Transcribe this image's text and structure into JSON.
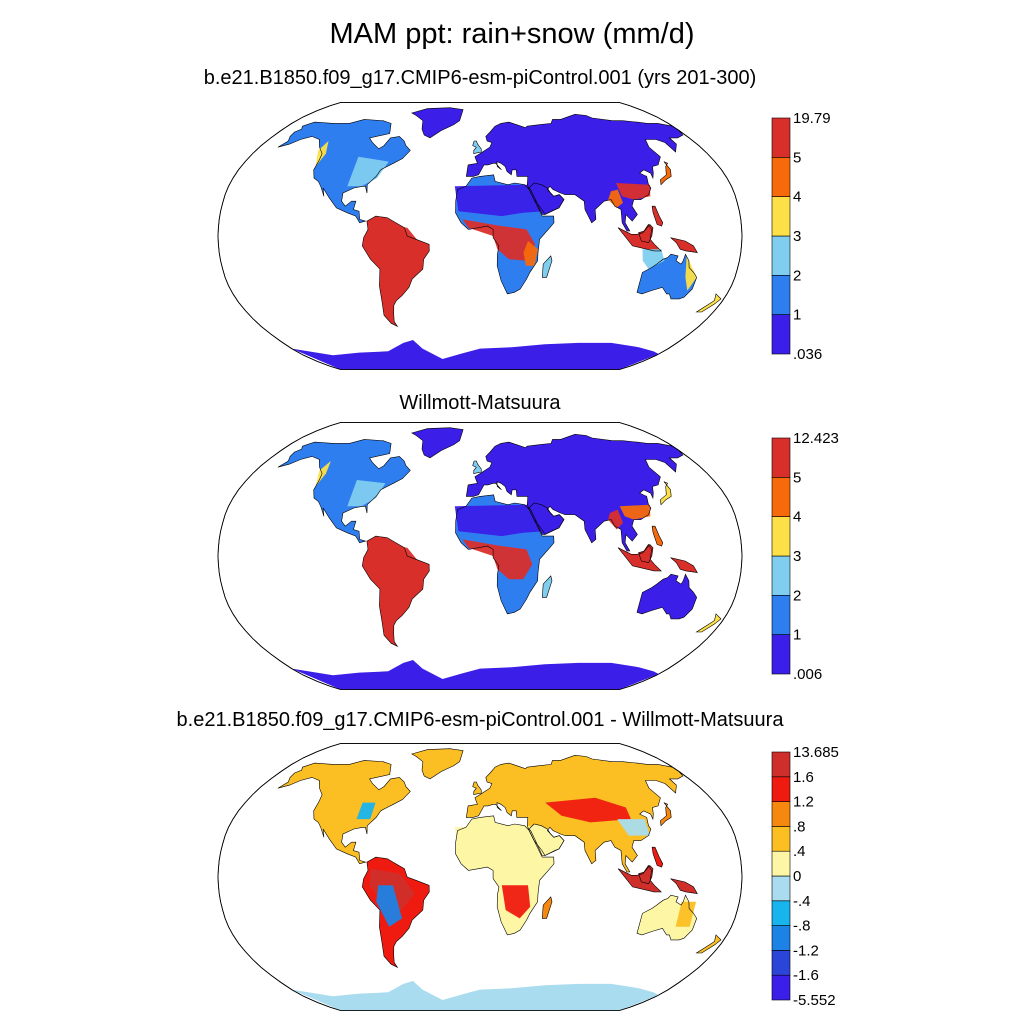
{
  "title": "MAM ppt: rain+snow (mm/d)",
  "colors": {
    "ramp_main": [
      "#3b1fe8",
      "#2f7ef0",
      "#7fcdef",
      "#fde047",
      "#f76a0c",
      "#d92f2b"
    ],
    "ramp_diff": [
      "#3b1fe8",
      "#2b45d8",
      "#1d82e6",
      "#18b4ee",
      "#a9dcef",
      "#fdf6a4",
      "#fbbf24",
      "#f7880f",
      "#ef1b10",
      "#cf2f2b"
    ],
    "ocean": "#ffffff",
    "outline": "#000000"
  },
  "chart_data": [
    {
      "type": "heatmap",
      "title": "b.e21.B1850.f09_g17.CMIP6-esm-piControl.001 (yrs 201-300)",
      "projection": "Robinson (global map)",
      "variable": "MAM precipitation (rain+snow)",
      "units": "mm/d",
      "colorbar": {
        "labels": [
          "19.79",
          "5",
          "4",
          "3",
          "2",
          "1",
          ".036"
        ],
        "min": 0.036,
        "max": 19.79,
        "boundaries": [
          1,
          2,
          3,
          4,
          5
        ]
      }
    },
    {
      "type": "heatmap",
      "title": "Willmott-Matsuura",
      "projection": "Robinson (global map)",
      "variable": "MAM precipitation (rain+snow)",
      "units": "mm/d",
      "colorbar": {
        "labels": [
          "12.423",
          "5",
          "4",
          "3",
          "2",
          "1",
          ".006"
        ],
        "min": 0.006,
        "max": 12.423,
        "boundaries": [
          1,
          2,
          3,
          4,
          5
        ]
      }
    },
    {
      "type": "heatmap",
      "title": "b.e21.B1850.f09_g17.CMIP6-esm-piControl.001 - Willmott-Matsuura",
      "projection": "Robinson (global map)",
      "variable": "MAM precipitation difference (model - observations)",
      "units": "mm/d",
      "colorbar": {
        "labels": [
          "13.685",
          "1.6",
          "1.2",
          ".8",
          ".4",
          "0",
          "-.4",
          "-.8",
          "-1.2",
          "-1.6",
          "-5.552"
        ],
        "min": -5.552,
        "max": 13.685,
        "boundaries": [
          -1.6,
          -1.2,
          -0.8,
          -0.4,
          0,
          0.4,
          0.8,
          1.2,
          1.6
        ]
      }
    }
  ]
}
